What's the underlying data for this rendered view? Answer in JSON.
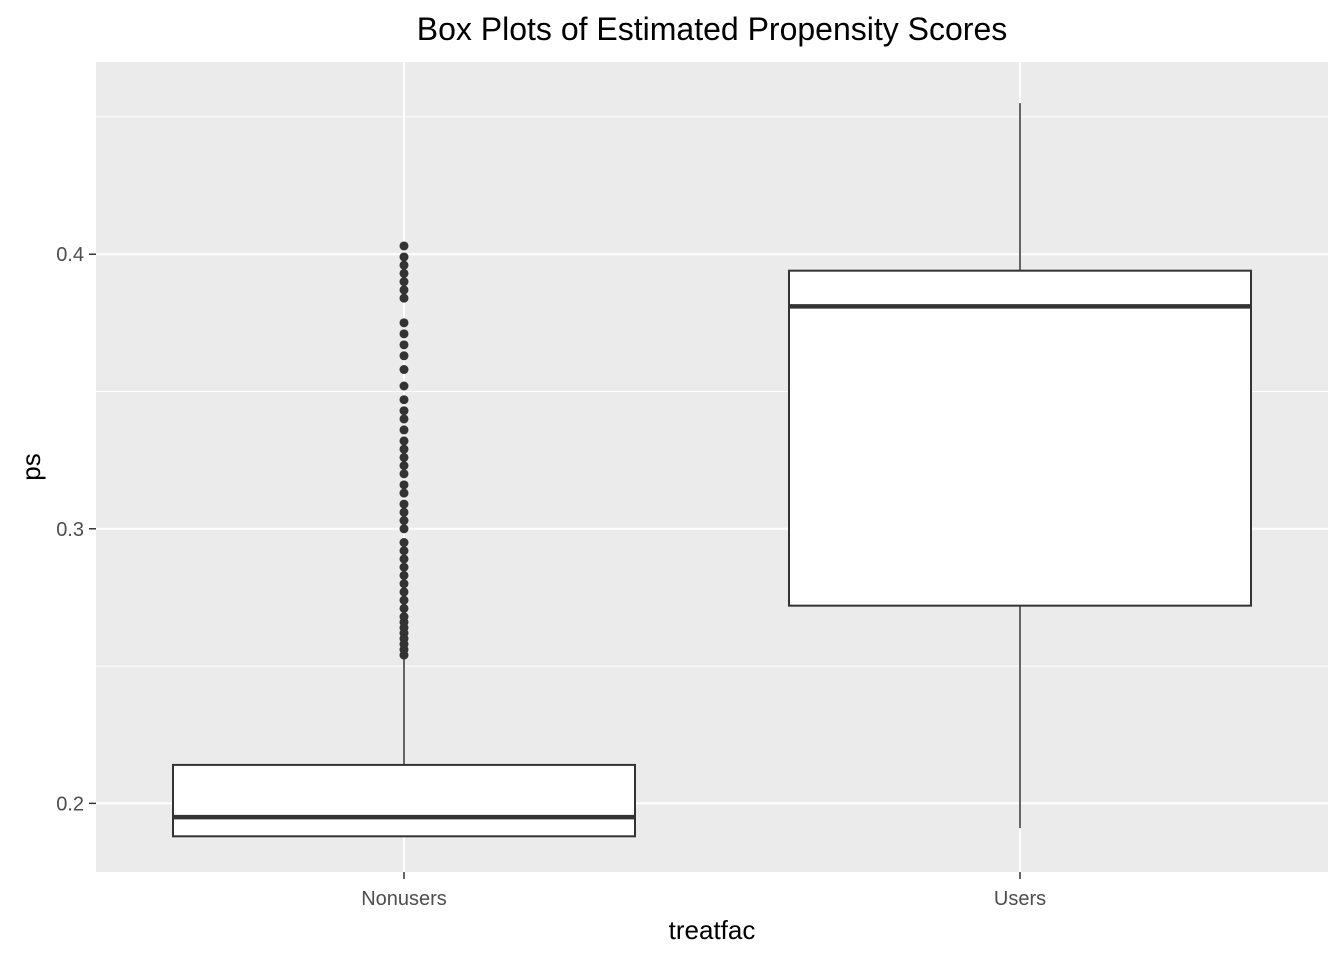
{
  "chart_data": {
    "type": "boxplot",
    "title": "Box Plots of Estimated Propensity Scores",
    "xlabel": "treatfac",
    "ylabel": "ps",
    "categories": [
      "Nonusers",
      "Users"
    ],
    "ylim": [
      0.175,
      0.47
    ],
    "yticks": [
      0.2,
      0.3,
      0.4
    ],
    "yticklabels": [
      "0.2",
      "0.3",
      "0.4"
    ],
    "grid": true,
    "legend": "none",
    "colors": {
      "panel_background": "#ebebeb",
      "grid": "#ffffff",
      "box_fill": "#ffffff",
      "box_stroke": "#333333",
      "outlier": "#333333",
      "tick": "#333333"
    },
    "boxes": [
      {
        "category": "Nonusers",
        "whisker_low": 0.188,
        "q1": 0.188,
        "median": 0.195,
        "q3": 0.214,
        "whisker_high": 0.253,
        "outliers": [
          0.254,
          0.256,
          0.258,
          0.26,
          0.262,
          0.264,
          0.266,
          0.268,
          0.271,
          0.274,
          0.277,
          0.28,
          0.283,
          0.286,
          0.289,
          0.292,
          0.295,
          0.3,
          0.303,
          0.306,
          0.309,
          0.313,
          0.316,
          0.32,
          0.323,
          0.326,
          0.329,
          0.332,
          0.336,
          0.34,
          0.343,
          0.347,
          0.352,
          0.358,
          0.363,
          0.367,
          0.371,
          0.375,
          0.384,
          0.387,
          0.39,
          0.393,
          0.396,
          0.399,
          0.403
        ]
      },
      {
        "category": "Users",
        "whisker_low": 0.191,
        "q1": 0.272,
        "median": 0.381,
        "q3": 0.394,
        "whisker_high": 0.455,
        "outliers": []
      }
    ]
  }
}
